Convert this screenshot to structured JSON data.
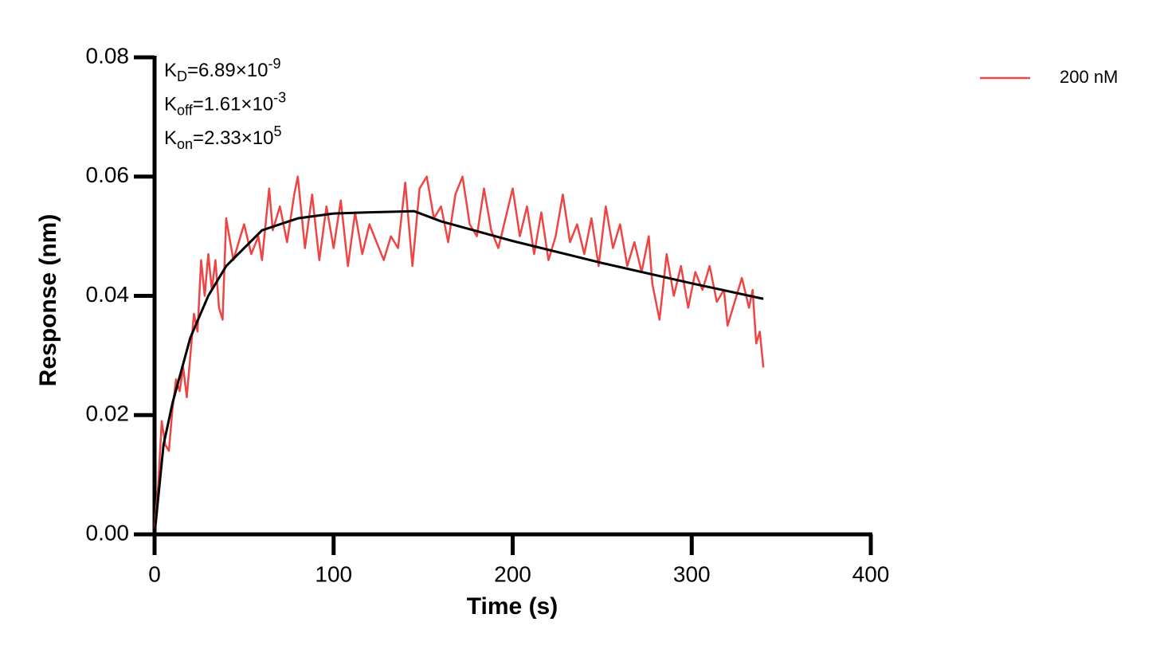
{
  "chart_data": {
    "type": "line",
    "xlabel": "Time (s)",
    "ylabel": "Response (nm)",
    "xlim": [
      0,
      400
    ],
    "xticks": [
      0,
      100,
      200,
      300,
      400
    ],
    "ylim": [
      0,
      0.08
    ],
    "yticks": [
      {
        "value": 0,
        "label": "0.00"
      },
      0.02,
      0.04,
      0.06,
      0.08
    ],
    "legend": "upper right",
    "annotations": [
      {
        "symbol": "K",
        "sub": "D",
        "text": "=6.89×10",
        "sup": "-9"
      },
      {
        "symbol": "K",
        "sub": "off",
        "text": "=1.61×10",
        "sup": "-3"
      },
      {
        "symbol": "K",
        "sub": "on",
        "text": "=2.33×10",
        "sup": "5"
      }
    ],
    "series": [
      {
        "name": "200 nM",
        "color": "#ee4444",
        "x": [
          0,
          2,
          4,
          6,
          8,
          10,
          12,
          14,
          16,
          18,
          20,
          22,
          24,
          26,
          28,
          30,
          32,
          34,
          36,
          38,
          40,
          44,
          46,
          50,
          54,
          58,
          60,
          64,
          66,
          70,
          74,
          78,
          80,
          84,
          88,
          92,
          96,
          100,
          104,
          108,
          112,
          116,
          120,
          124,
          128,
          132,
          136,
          140,
          144,
          148,
          152,
          156,
          160,
          164,
          168,
          172,
          176,
          180,
          184,
          188,
          192,
          196,
          200,
          204,
          208,
          212,
          216,
          220,
          224,
          228,
          232,
          236,
          240,
          244,
          248,
          252,
          256,
          260,
          264,
          268,
          272,
          276,
          278,
          282,
          286,
          290,
          294,
          298,
          302,
          306,
          310,
          314,
          318,
          320,
          324,
          328,
          332,
          334,
          336,
          338,
          340
        ],
        "values": [
          0.001,
          0.008,
          0.019,
          0.015,
          0.014,
          0.021,
          0.026,
          0.024,
          0.028,
          0.023,
          0.03,
          0.037,
          0.034,
          0.046,
          0.04,
          0.047,
          0.041,
          0.046,
          0.038,
          0.036,
          0.053,
          0.046,
          0.048,
          0.052,
          0.047,
          0.05,
          0.046,
          0.058,
          0.051,
          0.055,
          0.049,
          0.057,
          0.06,
          0.048,
          0.057,
          0.046,
          0.055,
          0.048,
          0.056,
          0.045,
          0.054,
          0.047,
          0.052,
          0.049,
          0.046,
          0.05,
          0.048,
          0.059,
          0.045,
          0.058,
          0.06,
          0.053,
          0.055,
          0.049,
          0.057,
          0.06,
          0.052,
          0.05,
          0.058,
          0.051,
          0.048,
          0.053,
          0.058,
          0.05,
          0.055,
          0.047,
          0.054,
          0.046,
          0.05,
          0.057,
          0.049,
          0.052,
          0.047,
          0.053,
          0.045,
          0.055,
          0.048,
          0.052,
          0.045,
          0.049,
          0.044,
          0.05,
          0.042,
          0.036,
          0.047,
          0.04,
          0.045,
          0.038,
          0.044,
          0.041,
          0.045,
          0.039,
          0.041,
          0.035,
          0.039,
          0.043,
          0.038,
          0.041,
          0.032,
          0.034,
          0.028
        ]
      },
      {
        "color": "#000000",
        "x": [
          0,
          5,
          10,
          20,
          30,
          40,
          50,
          60,
          80,
          100,
          120,
          145,
          160,
          200,
          250,
          300,
          340
        ],
        "values": [
          0,
          0.015,
          0.022,
          0.033,
          0.04,
          0.045,
          0.048,
          0.051,
          0.053,
          0.0538,
          0.054,
          0.0542,
          0.0525,
          0.0492,
          0.0455,
          0.0421,
          0.0395
        ]
      }
    ]
  }
}
